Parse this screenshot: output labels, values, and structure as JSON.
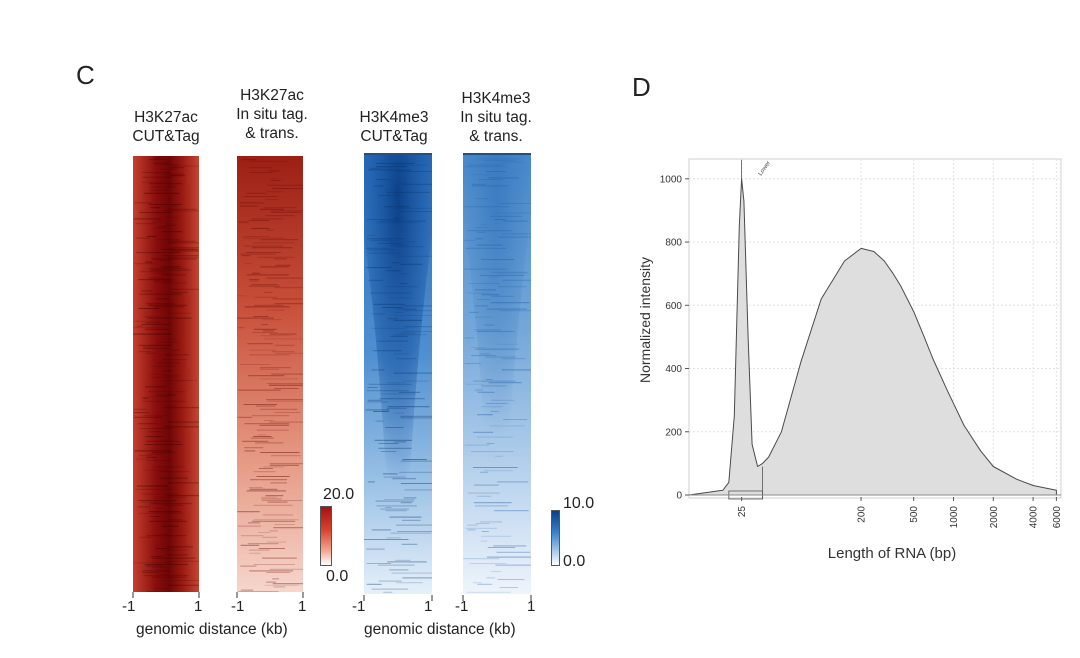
{
  "panel_c": {
    "letter": "C",
    "heatmaps": [
      {
        "title_1": "H3K27ac",
        "title_2": "CUT&Tag",
        "title_3": "",
        "color": "#8b0a0a",
        "color_name": "red"
      },
      {
        "title_1": "H3K27ac",
        "title_2": "In situ tag.",
        "title_3": "& trans.",
        "color": "#a61c12",
        "color_name": "red"
      },
      {
        "title_1": "H3K4me3",
        "title_2": "CUT&Tag",
        "title_3": "",
        "color": "#0d4f9c",
        "color_name": "blue"
      },
      {
        "title_1": "H3K4me3",
        "title_2": "In situ tag.",
        "title_3": "& trans.",
        "color": "#2f75c0",
        "color_name": "blue"
      }
    ],
    "x_tick_left": "-1",
    "x_tick_right": "1",
    "xlabel": "genomic distance (kb)",
    "colorbar_red": {
      "max": "20.0",
      "min": "0.0"
    },
    "colorbar_blue": {
      "max": "10.0",
      "min": "0.0"
    }
  },
  "panel_d": {
    "letter": "D",
    "peak_label": "Lower",
    "chart_data": {
      "type": "area",
      "xlabel": "Length of RNA (bp)",
      "ylabel": "Normalized intensity",
      "x_scale": "log",
      "ylim": [
        0,
        1050
      ],
      "y_ticks": [
        "0",
        "200",
        "400",
        "600",
        "800",
        "1000"
      ],
      "x_ticks": [
        "25",
        "200",
        "500",
        "1000",
        "2000",
        "4000",
        "6000"
      ],
      "grid": true,
      "x": [
        10,
        18,
        20,
        22,
        24,
        25,
        26,
        28,
        30,
        33,
        36,
        40,
        50,
        70,
        100,
        150,
        200,
        250,
        300,
        350,
        400,
        500,
        600,
        700,
        900,
        1200,
        1600,
        2000,
        3000,
        4000,
        6000
      ],
      "y": [
        0,
        15,
        40,
        250,
        850,
        1000,
        930,
        500,
        160,
        90,
        100,
        120,
        200,
        420,
        620,
        740,
        780,
        770,
        740,
        700,
        660,
        580,
        500,
        430,
        330,
        220,
        140,
        90,
        50,
        30,
        15
      ]
    }
  }
}
